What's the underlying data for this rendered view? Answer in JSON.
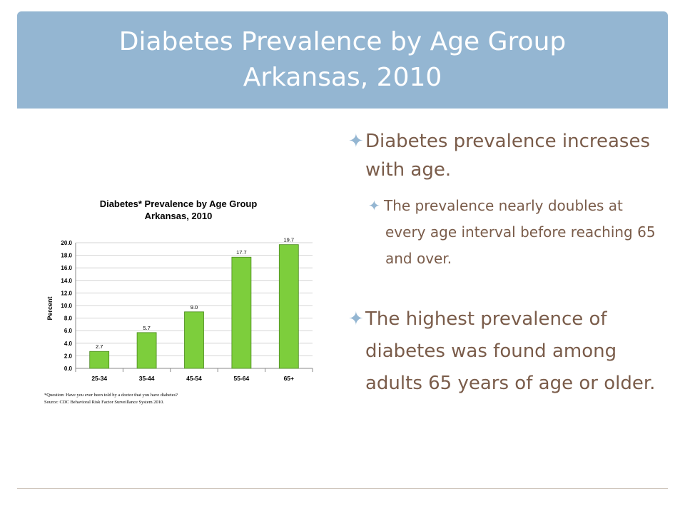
{
  "slide": {
    "title_line1": "Diabetes Prevalence by Age Group",
    "title_line2": "Arkansas, 2010",
    "bullet_mark": "✦",
    "bullets": [
      "Diabetes prevalence increases with age.",
      "The prevalence nearly doubles at every age interval before reaching 65 and over.",
      "The highest prevalence of diabetes was found among adults 65 years of age or older."
    ],
    "colors": {
      "title_bar": "#94b6d2",
      "body_text": "#7a5c4a",
      "bar_fill": "#7dce3c"
    }
  },
  "chart_data": {
    "type": "bar",
    "title": "Diabetes* Prevalence by Age Group",
    "subtitle": "Arkansas, 2010",
    "categories": [
      "25-34",
      "35-44",
      "45-54",
      "55-64",
      "65+"
    ],
    "values": [
      2.7,
      5.7,
      9.0,
      17.7,
      19.7
    ],
    "value_labels": [
      "2.7",
      "5.7",
      "9.0",
      "17.7",
      "19.7"
    ],
    "ylabel": "Percent",
    "xlabel": "",
    "ylim": [
      0,
      20
    ],
    "yticks": [
      "0.0",
      "2.0",
      "4.0",
      "6.0",
      "8.0",
      "10.0",
      "12.0",
      "14.0",
      "16.0",
      "18.0",
      "20.0"
    ],
    "grid": true,
    "footnote_1": "*Question:  Have you ever been told by a doctor that you have diabetes?",
    "footnote_2": "Source: CDC Behavioral Risk Factor Surveillance System 2010."
  }
}
